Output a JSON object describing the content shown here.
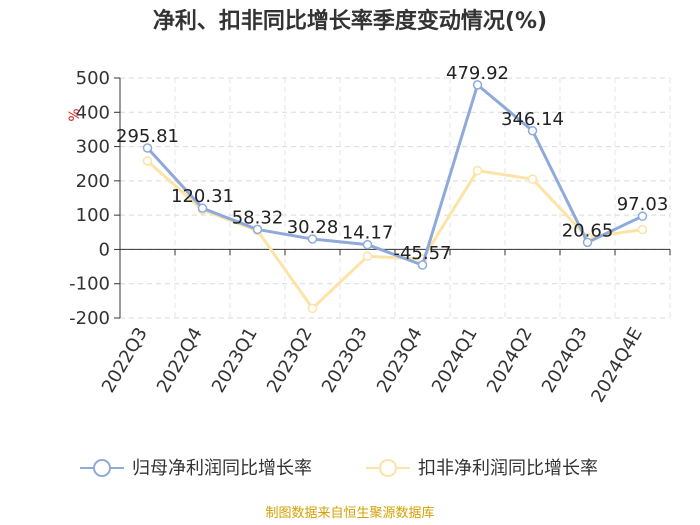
{
  "chart_data": {
    "type": "line",
    "title": "净利、扣非同比增长率季度变动情况(%)",
    "ylabel": "%",
    "xlabel": "",
    "categories": [
      "2022Q3",
      "2022Q4",
      "2023Q1",
      "2023Q2",
      "2023Q3",
      "2023Q4",
      "2024Q1",
      "2024Q2",
      "2024Q3",
      "2024Q4E"
    ],
    "ylim": [
      -200,
      500
    ],
    "yticks": [
      500,
      400,
      300,
      200,
      100,
      0,
      -100,
      -200
    ],
    "ytick_labels": [
      "500",
      "400",
      "300",
      "200",
      "100",
      "0",
      "-100",
      "-200"
    ],
    "grid": true,
    "legend_position": "bottom",
    "series": [
      {
        "name": "归母净利润同比增长率",
        "color": "#8eaadb",
        "values": [
          295.81,
          120.31,
          58.32,
          30.28,
          14.17,
          -45.57,
          479.92,
          346.14,
          20.65,
          97.03
        ],
        "labels": [
          "295.81",
          "120.31",
          "58.32",
          "30.28",
          "14.17",
          "-45.57",
          "479.92",
          "346.14",
          "20.65",
          "97.03"
        ]
      },
      {
        "name": "扣非净利润同比增长率",
        "color": "#fde3a6",
        "values": [
          258,
          115,
          55,
          -172,
          -20,
          -28,
          230,
          205,
          35,
          58
        ]
      }
    ]
  },
  "source": "制图数据来自恒生聚源数据库"
}
